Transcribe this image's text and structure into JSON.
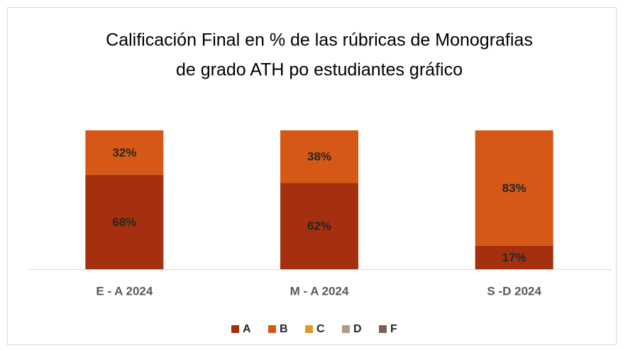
{
  "chart_data": {
    "type": "stacked_bar",
    "title": [
      "Calificación Final en % de las rúbricas de Monografias",
      "de grado ATH po estudiantes gráfico"
    ],
    "categories": [
      "E - A 2024",
      "M - A 2024",
      "S -D 2024"
    ],
    "ylim": [
      0,
      100
    ],
    "legend": "bottom",
    "series": [
      {
        "name": "A",
        "color": "#a5300f",
        "values": [
          68,
          62,
          17
        ],
        "value_labels": [
          "68%",
          "62%",
          "17%"
        ]
      },
      {
        "name": "B",
        "color": "#d55816",
        "values": [
          32,
          38,
          83
        ],
        "value_labels": [
          "32%",
          "38%",
          "83%"
        ]
      },
      {
        "name": "C",
        "color": "#e19825",
        "values": [
          0,
          0,
          0
        ]
      },
      {
        "name": "D",
        "color": "#b19c7d",
        "values": [
          0,
          0,
          0
        ]
      },
      {
        "name": "F",
        "color": "#7f5f52",
        "values": [
          0,
          0,
          0
        ]
      }
    ]
  }
}
